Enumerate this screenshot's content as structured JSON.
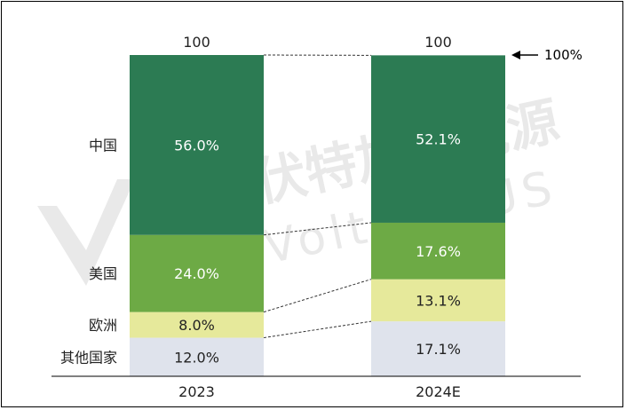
{
  "chart_data": {
    "type": "bar",
    "stacked": true,
    "categories": [
      "2023",
      "2024E"
    ],
    "totals": [
      "100",
      "100"
    ],
    "series": [
      {
        "name": "其他国家",
        "values": [
          12.0,
          17.1
        ],
        "labels": [
          "12.0%",
          "17.1%"
        ],
        "color": "#dfe3ec"
      },
      {
        "name": "欧洲",
        "values": [
          8.0,
          13.1
        ],
        "labels": [
          "8.0%",
          "13.1%"
        ],
        "color": "#e6e99b"
      },
      {
        "name": "美国",
        "values": [
          24.0,
          17.6
        ],
        "labels": [
          "24.0%",
          "17.6%"
        ],
        "color": "#6daa45"
      },
      {
        "name": "中国",
        "values": [
          56.0,
          52.1
        ],
        "labels": [
          "56.0%",
          "52.1%"
        ],
        "color": "#2c7b53"
      }
    ],
    "ylim": [
      0,
      100
    ],
    "annotation": "100%",
    "grid": false,
    "legend": "left, aligned with 2023 segments"
  },
  "watermark": {
    "text": "伏特加新能源",
    "subtext": "Volta PLUS"
  }
}
